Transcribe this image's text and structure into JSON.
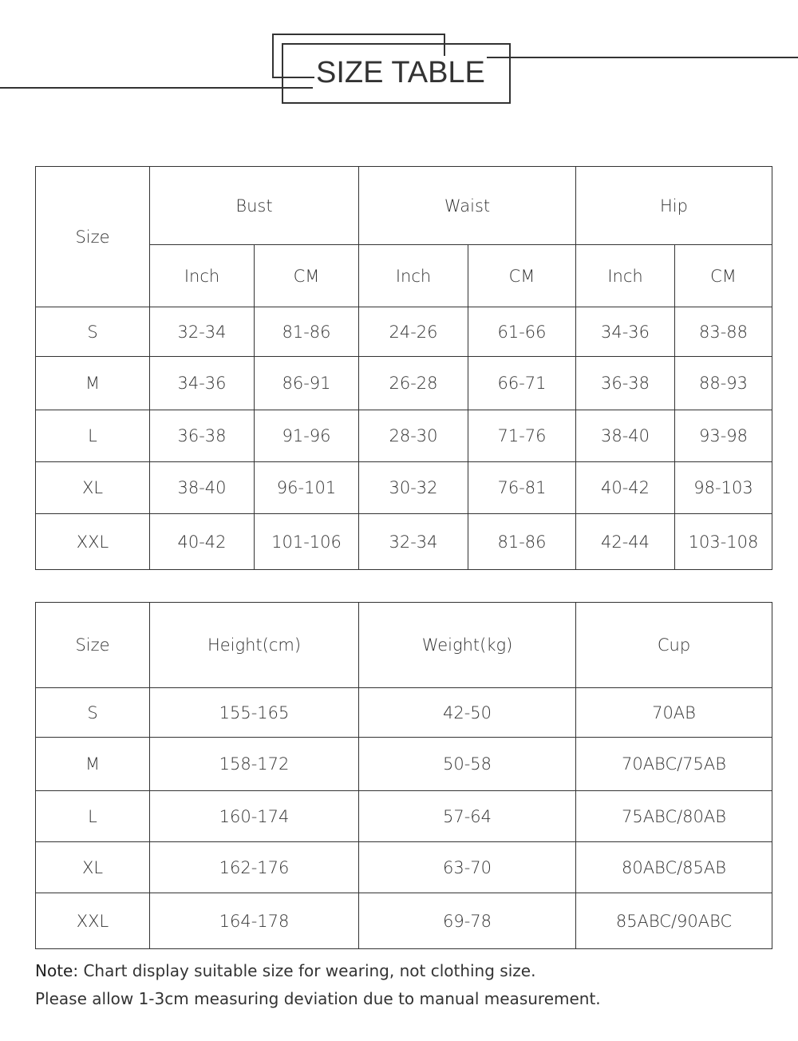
{
  "header": {
    "title": "SIZE TABLE"
  },
  "table1": {
    "size_label": "Size",
    "groups": [
      "Bust",
      "Waist",
      "Hip"
    ],
    "units": [
      "Inch",
      "CM",
      "Inch",
      "CM",
      "Inch",
      "CM"
    ],
    "rows": [
      [
        "S",
        "32-34",
        "81-86",
        "24-26",
        "61-66",
        "34-36",
        "83-88"
      ],
      [
        "M",
        "34-36",
        "86-91",
        "26-28",
        "66-71",
        "36-38",
        "88-93"
      ],
      [
        "L",
        "36-38",
        "91-96",
        "28-30",
        "71-76",
        "38-40",
        "93-98"
      ],
      [
        "XL",
        "38-40",
        "96-101",
        "30-32",
        "76-81",
        "40-42",
        "98-103"
      ],
      [
        "XXL",
        "40-42",
        "101-106",
        "32-34",
        "81-86",
        "42-44",
        "103-108"
      ]
    ]
  },
  "table2": {
    "headers": [
      "Size",
      "Height(cm)",
      "Weight(kg)",
      "Cup"
    ],
    "rows": [
      [
        "S",
        "155-165",
        "42-50",
        "70AB"
      ],
      [
        "M",
        "158-172",
        "50-58",
        "70ABC/75AB"
      ],
      [
        "L",
        "160-174",
        "57-64",
        "75ABC/80AB"
      ],
      [
        "XL",
        "162-176",
        "63-70",
        "80ABC/85AB"
      ],
      [
        "XXL",
        "164-178",
        "69-78",
        "85ABC/90ABC"
      ]
    ]
  },
  "note": {
    "label": "Note:",
    "line1": "Chart display suitable size for wearing, not clothing size.",
    "line2": "Please allow 1-3cm measuring deviation due to manual measurement."
  }
}
